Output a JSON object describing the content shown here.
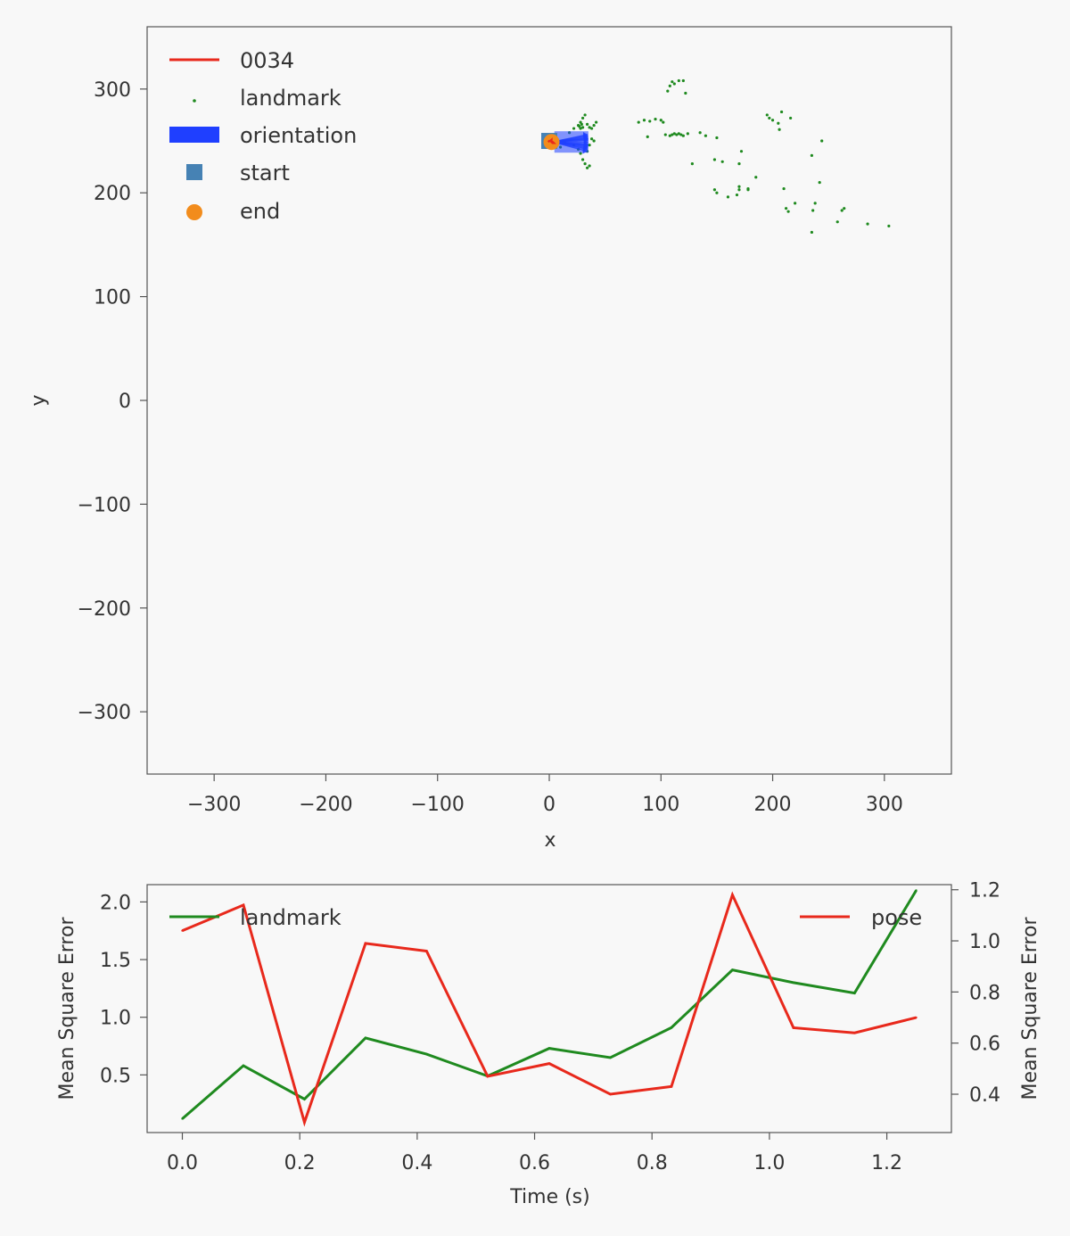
{
  "chart_data": [
    {
      "type": "scatter",
      "xlabel": "x",
      "ylabel": "y",
      "xlim": [
        -360,
        360
      ],
      "ylim": [
        -360,
        360
      ],
      "xticks": [
        -300,
        -200,
        -100,
        0,
        100,
        200,
        300
      ],
      "yticks": [
        -300,
        -200,
        -100,
        0,
        100,
        200,
        300
      ],
      "grid": false,
      "legend_position": "top-left",
      "legend": [
        {
          "label": "0034",
          "kind": "line",
          "color": "#e8291c"
        },
        {
          "label": "landmark",
          "kind": "dot",
          "color": "#1f8a1f"
        },
        {
          "label": "orientation",
          "kind": "patch",
          "color": "#1f3fff"
        },
        {
          "label": "start",
          "kind": "square",
          "color": "#4682b4"
        },
        {
          "label": "end",
          "kind": "circle",
          "color": "#f28c1c"
        }
      ],
      "trajectory": {
        "name": "0034",
        "color": "#e8291c",
        "x": [
          -1,
          0,
          1,
          2,
          2,
          3,
          4,
          3,
          2
        ],
        "y": [
          249,
          250,
          250,
          251,
          249,
          248,
          248,
          249,
          249
        ]
      },
      "start": {
        "x": 0,
        "y": 250,
        "color": "#4682b4"
      },
      "end": {
        "x": 2,
        "y": 249,
        "color": "#f28c1c"
      },
      "orientation": {
        "color": "#1f3fff",
        "x": 3,
        "y": 249,
        "angles_deg": [
          -10,
          -5,
          0,
          5,
          10,
          -8,
          -3,
          3,
          8,
          -12,
          12,
          -15,
          -6,
          6
        ],
        "length": 32
      },
      "landmarks": {
        "name": "landmark",
        "color": "#1f8a1f",
        "points": [
          [
            80,
            268
          ],
          [
            85,
            270
          ],
          [
            90,
            269
          ],
          [
            95,
            271
          ],
          [
            100,
            270
          ],
          [
            102,
            268
          ],
          [
            88,
            254
          ],
          [
            104,
            256
          ],
          [
            108,
            255
          ],
          [
            110,
            256
          ],
          [
            112,
            257
          ],
          [
            114,
            256
          ],
          [
            116,
            257
          ],
          [
            118,
            256
          ],
          [
            120,
            255
          ],
          [
            124,
            257
          ],
          [
            106,
            298
          ],
          [
            108,
            303
          ],
          [
            110,
            307
          ],
          [
            112,
            305
          ],
          [
            116,
            308
          ],
          [
            120,
            308
          ],
          [
            122,
            296
          ],
          [
            135,
            258
          ],
          [
            140,
            255
          ],
          [
            150,
            253
          ],
          [
            128,
            228
          ],
          [
            148,
            232
          ],
          [
            155,
            230
          ],
          [
            172,
            240
          ],
          [
            170,
            228
          ],
          [
            185,
            215
          ],
          [
            178,
            203
          ],
          [
            148,
            203
          ],
          [
            150,
            200
          ],
          [
            160,
            196
          ],
          [
            170,
            206
          ],
          [
            170,
            203
          ],
          [
            178,
            204
          ],
          [
            168,
            198
          ],
          [
            195,
            275
          ],
          [
            197,
            272
          ],
          [
            200,
            270
          ],
          [
            205,
            267
          ],
          [
            208,
            278
          ],
          [
            216,
            272
          ],
          [
            206,
            261
          ],
          [
            210,
            204
          ],
          [
            212,
            185
          ],
          [
            214,
            182
          ],
          [
            220,
            190
          ],
          [
            236,
            183
          ],
          [
            238,
            190
          ],
          [
            242,
            210
          ],
          [
            244,
            250
          ],
          [
            235,
            236
          ],
          [
            235,
            162
          ],
          [
            258,
            172
          ],
          [
            262,
            183
          ],
          [
            264,
            185
          ],
          [
            285,
            170
          ],
          [
            304,
            168
          ],
          [
            18,
            258
          ],
          [
            22,
            262
          ],
          [
            26,
            265
          ],
          [
            28,
            268
          ],
          [
            30,
            272
          ],
          [
            32,
            275
          ],
          [
            34,
            266
          ],
          [
            36,
            263
          ],
          [
            38,
            262
          ],
          [
            40,
            265
          ],
          [
            42,
            268
          ],
          [
            28,
            238
          ],
          [
            30,
            232
          ],
          [
            32,
            228
          ],
          [
            34,
            224
          ],
          [
            36,
            226
          ],
          [
            26,
            242
          ],
          [
            22,
            246
          ],
          [
            14,
            248
          ],
          [
            12,
            250
          ],
          [
            10,
            244
          ],
          [
            28,
            262
          ],
          [
            27,
            264
          ],
          [
            29,
            266
          ],
          [
            30,
            263
          ],
          [
            38,
            252
          ],
          [
            40,
            250
          ],
          [
            36,
            246
          ],
          [
            32,
            244
          ],
          [
            34,
            240
          ]
        ]
      }
    },
    {
      "type": "line",
      "xlabel": "Time (s)",
      "ylabel": "Mean Square Error",
      "ylabel_right": "Mean Square Error",
      "xlim": [
        -0.06,
        1.31
      ],
      "xticks": [
        0.0,
        0.2,
        0.4,
        0.6,
        0.8,
        1.0,
        1.2
      ],
      "xtick_labels": [
        "0.0",
        "0.2",
        "0.4",
        "0.6",
        "0.8",
        "1.0",
        "1.2"
      ],
      "ylim": [
        0.0,
        2.15
      ],
      "yticks": [
        0.5,
        1.0,
        1.5,
        2.0
      ],
      "ytick_labels": [
        "0.5",
        "1.0",
        "1.5",
        "2.0"
      ],
      "ylim_right": [
        0.25,
        1.22
      ],
      "yticks_right": [
        0.4,
        0.6,
        0.8,
        1.0,
        1.2
      ],
      "ytick_labels_right": [
        "0.4",
        "0.6",
        "0.8",
        "1.0",
        "1.2"
      ],
      "x": [
        0.0,
        0.104,
        0.208,
        0.312,
        0.416,
        0.52,
        0.625,
        0.729,
        0.833,
        0.937,
        1.041,
        1.145,
        1.25
      ],
      "series": [
        {
          "name": "landmark",
          "axis": "left",
          "color": "#1f8a1f",
          "legend_position": "upper-left",
          "values": [
            0.12,
            0.58,
            0.29,
            0.82,
            0.68,
            0.49,
            0.73,
            0.65,
            0.91,
            1.41,
            1.3,
            1.21,
            2.1
          ]
        },
        {
          "name": "pose",
          "axis": "right",
          "color": "#e8291c",
          "legend_position": "upper-right",
          "values": [
            1.04,
            1.14,
            0.29,
            0.99,
            0.96,
            0.47,
            0.52,
            0.4,
            0.43,
            1.18,
            0.66,
            0.64,
            0.7
          ]
        }
      ]
    }
  ]
}
